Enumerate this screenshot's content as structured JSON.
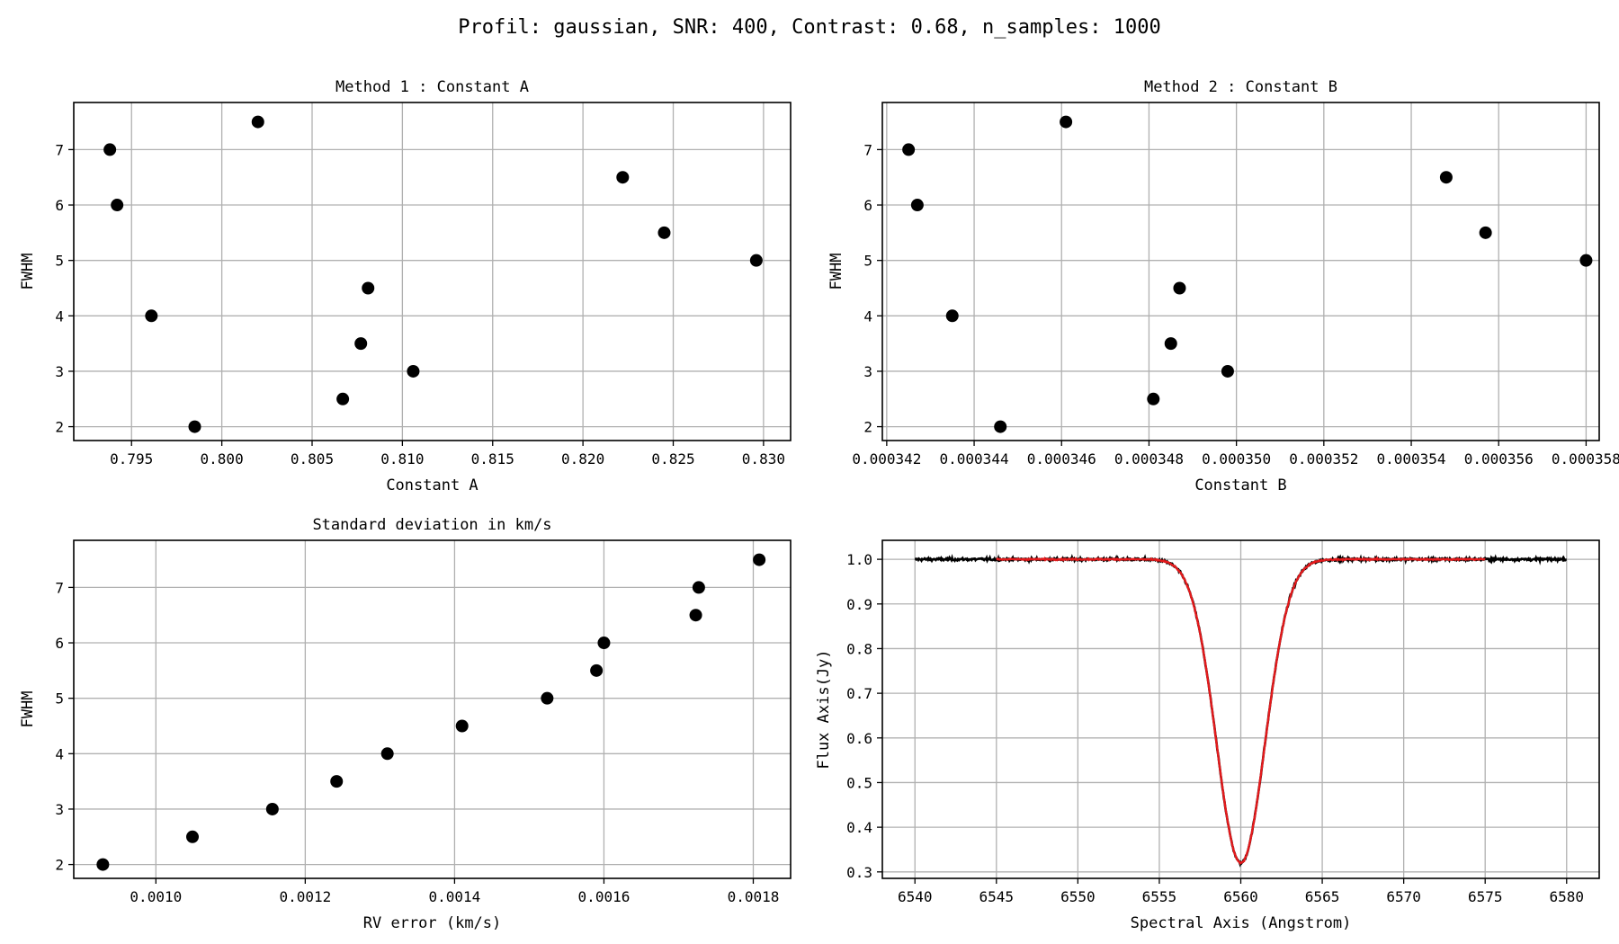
{
  "figure": {
    "suptitle": "Profil: gaussian, SNR: 400, Contrast: 0.68, n_samples: 1000"
  },
  "colors": {
    "points": "#000000",
    "grid": "#b0b0b0",
    "fit": "#e41a1c",
    "data_line": "#000000"
  },
  "chart_data": [
    {
      "type": "scatter",
      "title": "Method 1 : Constant A",
      "xlabel": "Constant A",
      "ylabel": "FWHM",
      "grid": true,
      "xlim": [
        0.7918,
        0.8315
      ],
      "ylim": [
        1.75,
        7.85
      ],
      "xticks": [
        0.795,
        0.8,
        0.805,
        0.81,
        0.815,
        0.82,
        0.825,
        0.83
      ],
      "xtick_labels": [
        "0.795",
        "0.800",
        "0.805",
        "0.810",
        "0.815",
        "0.820",
        "0.825",
        "0.830"
      ],
      "yticks": [
        2,
        3,
        4,
        5,
        6,
        7
      ],
      "ytick_labels": [
        "2",
        "3",
        "4",
        "5",
        "6",
        "7"
      ],
      "points": [
        {
          "x": 0.7938,
          "y": 7.0
        },
        {
          "x": 0.7942,
          "y": 6.0
        },
        {
          "x": 0.7961,
          "y": 4.0
        },
        {
          "x": 0.7985,
          "y": 2.0
        },
        {
          "x": 0.802,
          "y": 7.5
        },
        {
          "x": 0.8067,
          "y": 2.5
        },
        {
          "x": 0.8077,
          "y": 3.5
        },
        {
          "x": 0.8081,
          "y": 4.5
        },
        {
          "x": 0.8106,
          "y": 3.0
        },
        {
          "x": 0.8222,
          "y": 6.5
        },
        {
          "x": 0.8245,
          "y": 5.5
        },
        {
          "x": 0.8296,
          "y": 5.0
        }
      ]
    },
    {
      "type": "scatter",
      "title": "Method 2 : Constant B",
      "xlabel": "Constant B",
      "ylabel": "FWHM",
      "grid": true,
      "xlim": [
        0.0003419,
        0.0003583
      ],
      "ylim": [
        1.75,
        7.85
      ],
      "xticks": [
        0.000342,
        0.000344,
        0.000346,
        0.000348,
        0.00035,
        0.000352,
        0.000354,
        0.000356,
        0.000358
      ],
      "xtick_labels": [
        "0.000342",
        "0.000344",
        "0.000346",
        "0.000348",
        "0.000350",
        "0.000352",
        "0.000354",
        "0.000356",
        "0.000358"
      ],
      "yticks": [
        2,
        3,
        4,
        5,
        6,
        7
      ],
      "ytick_labels": [
        "2",
        "3",
        "4",
        "5",
        "6",
        "7"
      ],
      "points": [
        {
          "x": 0.0003425,
          "y": 7.0
        },
        {
          "x": 0.0003427,
          "y": 6.0
        },
        {
          "x": 0.0003435,
          "y": 4.0
        },
        {
          "x": 0.0003446,
          "y": 2.0
        },
        {
          "x": 0.0003461,
          "y": 7.5
        },
        {
          "x": 0.0003481,
          "y": 2.5
        },
        {
          "x": 0.0003485,
          "y": 3.5
        },
        {
          "x": 0.0003487,
          "y": 4.5
        },
        {
          "x": 0.0003498,
          "y": 3.0
        },
        {
          "x": 0.0003548,
          "y": 6.5
        },
        {
          "x": 0.0003557,
          "y": 5.5
        },
        {
          "x": 0.000358,
          "y": 5.0
        }
      ]
    },
    {
      "type": "scatter",
      "title": "Standard deviation in km/s",
      "xlabel": "RV error (km/s)",
      "ylabel": "FWHM",
      "grid": true,
      "xlim": [
        0.00089,
        0.00185
      ],
      "ylim": [
        1.75,
        7.85
      ],
      "xticks": [
        0.001,
        0.0012,
        0.0014,
        0.0016,
        0.0018
      ],
      "xtick_labels": [
        "0.0010",
        "0.0012",
        "0.0014",
        "0.0016",
        "0.0018"
      ],
      "yticks": [
        2,
        3,
        4,
        5,
        6,
        7
      ],
      "ytick_labels": [
        "2",
        "3",
        "4",
        "5",
        "6",
        "7"
      ],
      "points": [
        {
          "x": 0.000929,
          "y": 2.0
        },
        {
          "x": 0.001049,
          "y": 2.5
        },
        {
          "x": 0.001156,
          "y": 3.0
        },
        {
          "x": 0.001242,
          "y": 3.5
        },
        {
          "x": 0.00131,
          "y": 4.0
        },
        {
          "x": 0.00141,
          "y": 4.5
        },
        {
          "x": 0.001524,
          "y": 5.0
        },
        {
          "x": 0.00159,
          "y": 5.5
        },
        {
          "x": 0.0016,
          "y": 6.0
        },
        {
          "x": 0.001723,
          "y": 6.5
        },
        {
          "x": 0.001727,
          "y": 7.0
        },
        {
          "x": 0.001808,
          "y": 7.5
        }
      ]
    },
    {
      "type": "line",
      "title": "",
      "xlabel": "Spectral Axis (Angstrom)",
      "ylabel": "Flux Axis(Jy)",
      "grid": true,
      "xlim": [
        6538.0,
        6582.0
      ],
      "ylim": [
        0.2855,
        1.0425
      ],
      "xticks": [
        6540,
        6545,
        6550,
        6555,
        6560,
        6565,
        6570,
        6575,
        6580
      ],
      "xtick_labels": [
        "6540",
        "6545",
        "6550",
        "6555",
        "6560",
        "6565",
        "6570",
        "6575",
        "6580"
      ],
      "yticks": [
        0.3,
        0.4,
        0.5,
        0.6,
        0.7,
        0.8,
        0.9,
        1.0
      ],
      "ytick_labels": [
        "0.3",
        "0.4",
        "0.5",
        "0.6",
        "0.7",
        "0.8",
        "0.9",
        "1.0"
      ],
      "series": [
        {
          "color": "#000000",
          "x_range": [
            6540,
            6580
          ],
          "continuum": 1.0,
          "depth": 0.68,
          "center": 6560.0,
          "fwhm": 3.5,
          "noise": 0.0025
        },
        {
          "color": "#e41a1c",
          "x_range": [
            6545,
            6575
          ],
          "continuum": 1.0,
          "depth": 0.68,
          "center": 6560.0,
          "fwhm": 3.5,
          "noise": 0.0012
        }
      ]
    }
  ]
}
